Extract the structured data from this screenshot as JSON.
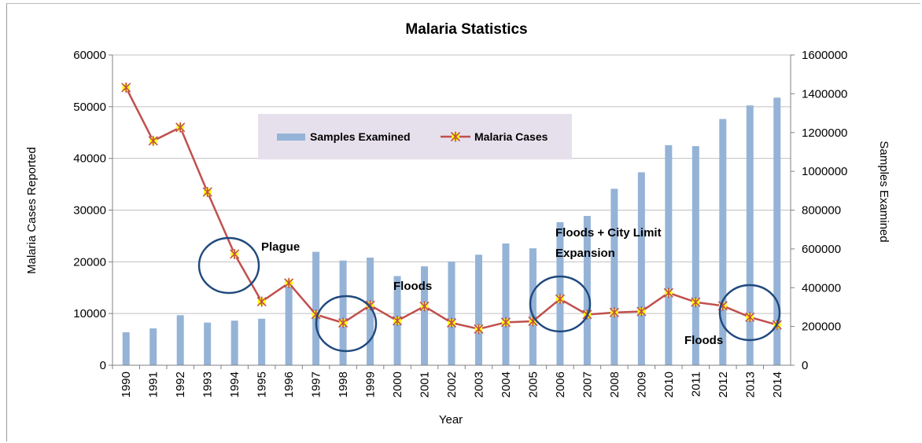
{
  "chart_data": {
    "type": "bar+line",
    "title": "Malaria Statistics",
    "xlabel": "Year",
    "ylabel_left": "Malaria Cases Reported",
    "ylabel_right": "Samples Examined",
    "categories": [
      "1990",
      "1991",
      "1992",
      "1993",
      "1994",
      "1995",
      "1996",
      "1997",
      "1998",
      "1999",
      "2000",
      "2001",
      "2002",
      "2003",
      "2004",
      "2005",
      "2006",
      "2007",
      "2008",
      "2009",
      "2010",
      "2011",
      "2012",
      "2013",
      "2014"
    ],
    "left_axis": {
      "min": 0,
      "max": 60000,
      "step": 10000,
      "ticks": [
        "0",
        "10000",
        "20000",
        "30000",
        "40000",
        "50000",
        "60000"
      ]
    },
    "right_axis": {
      "min": 0,
      "max": 1600000,
      "step": 200000,
      "ticks": [
        "0",
        "200000",
        "400000",
        "600000",
        "800000",
        "1000000",
        "1200000",
        "1400000",
        "1600000"
      ]
    },
    "series": [
      {
        "name": "Samples Examined",
        "kind": "bar",
        "axis": "right",
        "color": "#95b3d7",
        "values": [
          170000,
          190000,
          258000,
          220000,
          230000,
          240000,
          415000,
          585000,
          540000,
          555000,
          460000,
          510000,
          535000,
          570000,
          628000,
          603000,
          738000,
          770000,
          910000,
          995000,
          1135000,
          1130000,
          1270000,
          1340000,
          1380000
        ]
      },
      {
        "name": "Malaria Cases",
        "kind": "line",
        "axis": "left",
        "color": "#c0504d",
        "marker_color": "#ffff00",
        "values": [
          53700,
          43400,
          46000,
          33500,
          21500,
          12300,
          15900,
          9800,
          8200,
          11600,
          8600,
          11400,
          8200,
          7000,
          8300,
          8500,
          12800,
          9800,
          10200,
          10400,
          14000,
          12200,
          11500,
          9300,
          7800
        ]
      }
    ],
    "legend": {
      "position": "upper-center",
      "background": "#e6e0ec"
    },
    "annotations": [
      {
        "text": "Plague",
        "year": "1994"
      },
      {
        "text": "Floods",
        "year": "1998"
      },
      {
        "text": "Floods + City Limit",
        "year": "2006"
      },
      {
        "text": "Expansion",
        "year": "2006"
      },
      {
        "text": "Floods",
        "year": "2013"
      }
    ],
    "highlight_circles": [
      "1994",
      "1998",
      "2006",
      "2013"
    ],
    "circle_color": "#1f497d",
    "grid": {
      "horizontal": true,
      "color": "#c0c0c0"
    }
  }
}
